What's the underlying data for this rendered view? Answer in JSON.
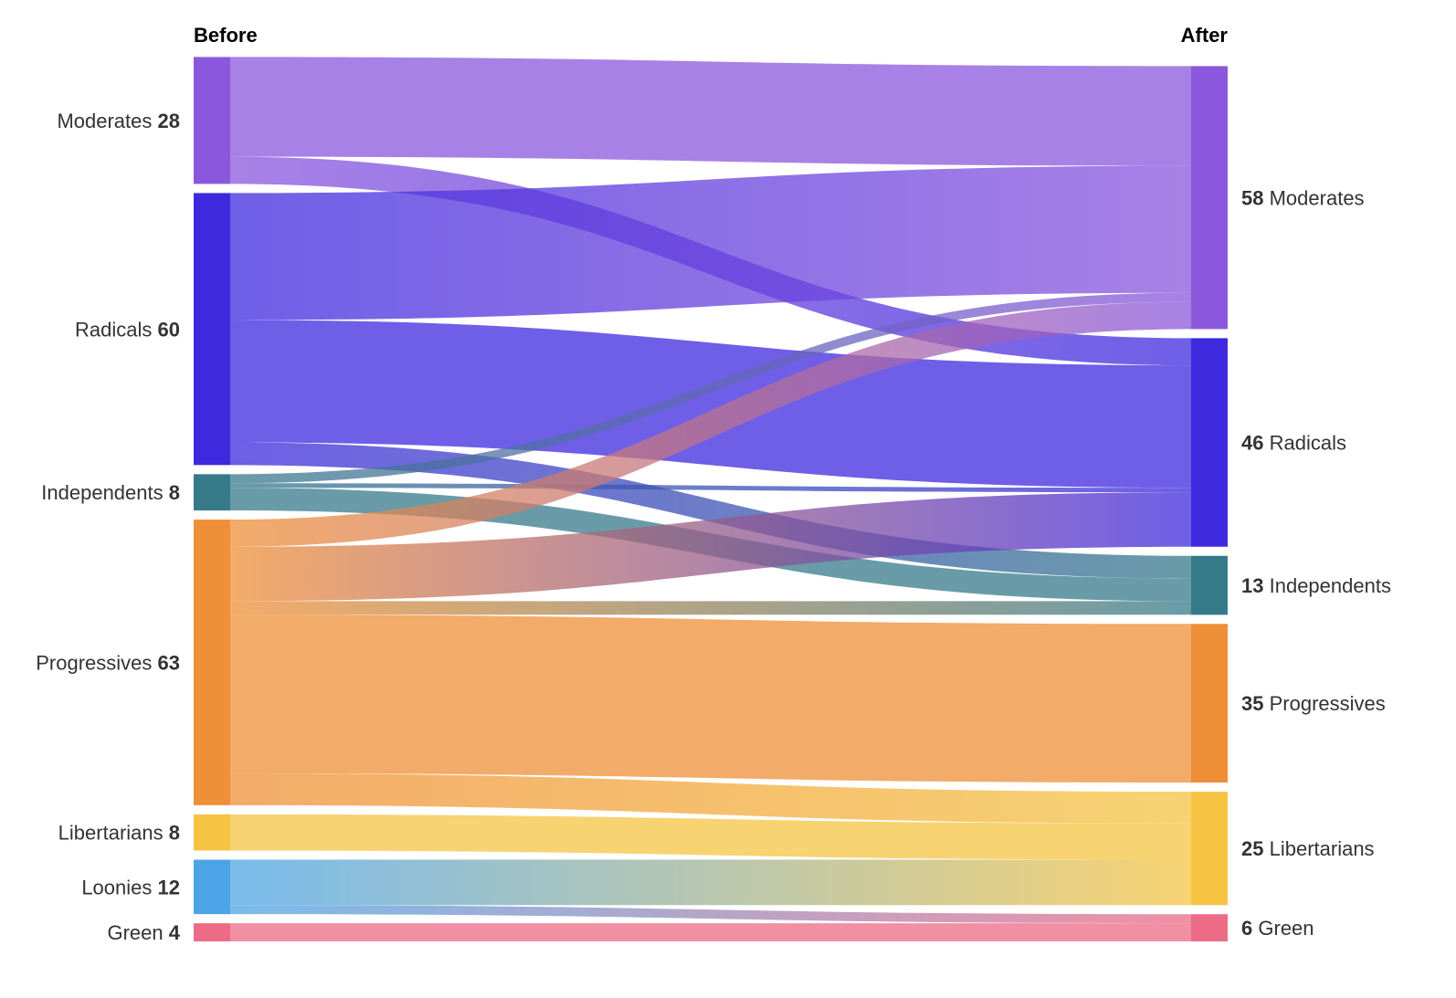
{
  "chart_data": {
    "type": "sankey",
    "left_title": "Before",
    "right_title": "After",
    "left_nodes": [
      {
        "id": "Moderates",
        "label": "Moderates",
        "value": 28,
        "color": "#8b57dd"
      },
      {
        "id": "Radicals",
        "label": "Radicals",
        "value": 60,
        "color": "#3f29df"
      },
      {
        "id": "Independents",
        "label": "Independents",
        "value": 8,
        "color": "#367a8a"
      },
      {
        "id": "Progressives",
        "label": "Progressives",
        "value": 63,
        "color": "#ef8f37"
      },
      {
        "id": "Libertarians",
        "label": "Libertarians",
        "value": 8,
        "color": "#f5c443"
      },
      {
        "id": "Loonies",
        "label": "Loonies",
        "value": 12,
        "color": "#4ca4e6"
      },
      {
        "id": "Green",
        "label": "Green",
        "value": 4,
        "color": "#ec6b86"
      }
    ],
    "right_nodes": [
      {
        "id": "Moderates",
        "label": "Moderates",
        "value": 58,
        "color": "#8b57dd"
      },
      {
        "id": "Radicals",
        "label": "Radicals",
        "value": 46,
        "color": "#3f29df"
      },
      {
        "id": "Independents",
        "label": "Independents",
        "value": 13,
        "color": "#367a8a"
      },
      {
        "id": "Progressives",
        "label": "Progressives",
        "value": 35,
        "color": "#ef8f37"
      },
      {
        "id": "Libertarians",
        "label": "Libertarians",
        "value": 25,
        "color": "#f5c443"
      },
      {
        "id": "Green",
        "label": "Green",
        "value": 6,
        "color": "#ec6b86"
      }
    ],
    "links": [
      {
        "source": "Moderates",
        "target": "Moderates",
        "value": 22
      },
      {
        "source": "Moderates",
        "target": "Radicals",
        "value": 6
      },
      {
        "source": "Radicals",
        "target": "Moderates",
        "value": 28
      },
      {
        "source": "Radicals",
        "target": "Radicals",
        "value": 27
      },
      {
        "source": "Radicals",
        "target": "Independents",
        "value": 5
      },
      {
        "source": "Independents",
        "target": "Moderates",
        "value": 2
      },
      {
        "source": "Independents",
        "target": "Radicals",
        "value": 1
      },
      {
        "source": "Independents",
        "target": "Independents",
        "value": 5
      },
      {
        "source": "Progressives",
        "target": "Moderates",
        "value": 6
      },
      {
        "source": "Progressives",
        "target": "Radicals",
        "value": 12
      },
      {
        "source": "Progressives",
        "target": "Independents",
        "value": 3
      },
      {
        "source": "Progressives",
        "target": "Progressives",
        "value": 35
      },
      {
        "source": "Progressives",
        "target": "Libertarians",
        "value": 7
      },
      {
        "source": "Libertarians",
        "target": "Libertarians",
        "value": 8
      },
      {
        "source": "Loonies",
        "target": "Libertarians",
        "value": 10
      },
      {
        "source": "Loonies",
        "target": "Green",
        "value": 2
      },
      {
        "source": "Green",
        "target": "Green",
        "value": 4
      }
    ]
  }
}
